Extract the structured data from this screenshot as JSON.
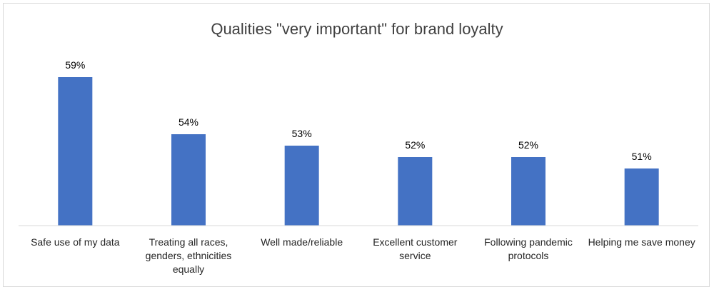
{
  "chart_data": {
    "type": "bar",
    "title": "Qualities \"very important\" for brand loyalty",
    "categories": [
      [
        "Safe use of my data"
      ],
      [
        "Treating all races,",
        "genders, ethnicities",
        "equally"
      ],
      [
        "Well made/reliable"
      ],
      [
        "Excellent customer",
        "service"
      ],
      [
        "Following pandemic",
        "protocols"
      ],
      [
        "Helping me save money"
      ]
    ],
    "values": [
      59,
      54,
      53,
      52,
      52,
      51
    ],
    "data_labels": [
      "59%",
      "54%",
      "53%",
      "52%",
      "52%",
      "51%"
    ],
    "xlabel": "",
    "ylabel": "",
    "ylim": [
      46,
      60
    ],
    "grid": false,
    "legend": "none",
    "bar_color": "#4472C4",
    "axis_color": "#d9d9d9"
  }
}
